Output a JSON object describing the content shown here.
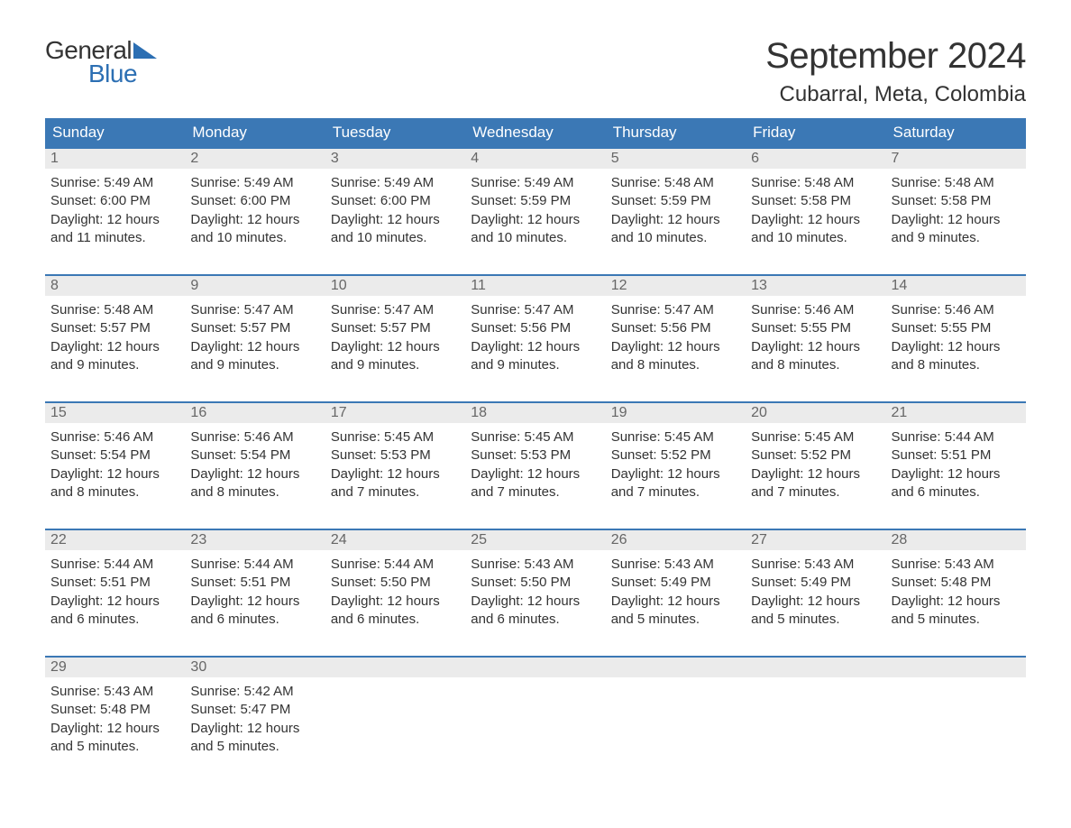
{
  "brand": {
    "line1": "General",
    "line2": "Blue",
    "accent": "#2c6fb3"
  },
  "title": "September 2024",
  "location": "Cubarral, Meta, Colombia",
  "colors": {
    "header_bg": "#3b78b5",
    "header_text": "#ffffff",
    "daynum_bg": "#ebebeb",
    "daynum_text": "#666666",
    "body_text": "#333333",
    "row_border": "#3b78b5",
    "page_bg": "#ffffff"
  },
  "typography": {
    "title_fontsize": 40,
    "location_fontsize": 24,
    "header_fontsize": 17,
    "daynum_fontsize": 16,
    "body_fontsize": 15
  },
  "columns": [
    "Sunday",
    "Monday",
    "Tuesday",
    "Wednesday",
    "Thursday",
    "Friday",
    "Saturday"
  ],
  "weeks": [
    [
      {
        "n": "1",
        "sr": "5:49 AM",
        "ss": "6:00 PM",
        "dl": "12 hours and 11 minutes."
      },
      {
        "n": "2",
        "sr": "5:49 AM",
        "ss": "6:00 PM",
        "dl": "12 hours and 10 minutes."
      },
      {
        "n": "3",
        "sr": "5:49 AM",
        "ss": "6:00 PM",
        "dl": "12 hours and 10 minutes."
      },
      {
        "n": "4",
        "sr": "5:49 AM",
        "ss": "5:59 PM",
        "dl": "12 hours and 10 minutes."
      },
      {
        "n": "5",
        "sr": "5:48 AM",
        "ss": "5:59 PM",
        "dl": "12 hours and 10 minutes."
      },
      {
        "n": "6",
        "sr": "5:48 AM",
        "ss": "5:58 PM",
        "dl": "12 hours and 10 minutes."
      },
      {
        "n": "7",
        "sr": "5:48 AM",
        "ss": "5:58 PM",
        "dl": "12 hours and 9 minutes."
      }
    ],
    [
      {
        "n": "8",
        "sr": "5:48 AM",
        "ss": "5:57 PM",
        "dl": "12 hours and 9 minutes."
      },
      {
        "n": "9",
        "sr": "5:47 AM",
        "ss": "5:57 PM",
        "dl": "12 hours and 9 minutes."
      },
      {
        "n": "10",
        "sr": "5:47 AM",
        "ss": "5:57 PM",
        "dl": "12 hours and 9 minutes."
      },
      {
        "n": "11",
        "sr": "5:47 AM",
        "ss": "5:56 PM",
        "dl": "12 hours and 9 minutes."
      },
      {
        "n": "12",
        "sr": "5:47 AM",
        "ss": "5:56 PM",
        "dl": "12 hours and 8 minutes."
      },
      {
        "n": "13",
        "sr": "5:46 AM",
        "ss": "5:55 PM",
        "dl": "12 hours and 8 minutes."
      },
      {
        "n": "14",
        "sr": "5:46 AM",
        "ss": "5:55 PM",
        "dl": "12 hours and 8 minutes."
      }
    ],
    [
      {
        "n": "15",
        "sr": "5:46 AM",
        "ss": "5:54 PM",
        "dl": "12 hours and 8 minutes."
      },
      {
        "n": "16",
        "sr": "5:46 AM",
        "ss": "5:54 PM",
        "dl": "12 hours and 8 minutes."
      },
      {
        "n": "17",
        "sr": "5:45 AM",
        "ss": "5:53 PM",
        "dl": "12 hours and 7 minutes."
      },
      {
        "n": "18",
        "sr": "5:45 AM",
        "ss": "5:53 PM",
        "dl": "12 hours and 7 minutes."
      },
      {
        "n": "19",
        "sr": "5:45 AM",
        "ss": "5:52 PM",
        "dl": "12 hours and 7 minutes."
      },
      {
        "n": "20",
        "sr": "5:45 AM",
        "ss": "5:52 PM",
        "dl": "12 hours and 7 minutes."
      },
      {
        "n": "21",
        "sr": "5:44 AM",
        "ss": "5:51 PM",
        "dl": "12 hours and 6 minutes."
      }
    ],
    [
      {
        "n": "22",
        "sr": "5:44 AM",
        "ss": "5:51 PM",
        "dl": "12 hours and 6 minutes."
      },
      {
        "n": "23",
        "sr": "5:44 AM",
        "ss": "5:51 PM",
        "dl": "12 hours and 6 minutes."
      },
      {
        "n": "24",
        "sr": "5:44 AM",
        "ss": "5:50 PM",
        "dl": "12 hours and 6 minutes."
      },
      {
        "n": "25",
        "sr": "5:43 AM",
        "ss": "5:50 PM",
        "dl": "12 hours and 6 minutes."
      },
      {
        "n": "26",
        "sr": "5:43 AM",
        "ss": "5:49 PM",
        "dl": "12 hours and 5 minutes."
      },
      {
        "n": "27",
        "sr": "5:43 AM",
        "ss": "5:49 PM",
        "dl": "12 hours and 5 minutes."
      },
      {
        "n": "28",
        "sr": "5:43 AM",
        "ss": "5:48 PM",
        "dl": "12 hours and 5 minutes."
      }
    ],
    [
      {
        "n": "29",
        "sr": "5:43 AM",
        "ss": "5:48 PM",
        "dl": "12 hours and 5 minutes."
      },
      {
        "n": "30",
        "sr": "5:42 AM",
        "ss": "5:47 PM",
        "dl": "12 hours and 5 minutes."
      },
      null,
      null,
      null,
      null,
      null
    ]
  ],
  "labels": {
    "sunrise": "Sunrise:",
    "sunset": "Sunset:",
    "daylight": "Daylight:"
  }
}
